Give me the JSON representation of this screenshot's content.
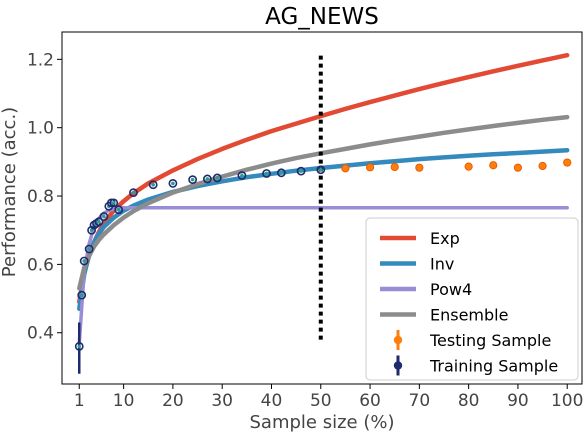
{
  "chart_data": {
    "type": "line",
    "title": "AG_NEWS",
    "xlabel": "Sample size (%)",
    "ylabel": "Performance (acc.)",
    "xlim": [
      -2.5,
      103
    ],
    "ylim": [
      0.25,
      1.28
    ],
    "xticks": [
      1,
      10,
      20,
      30,
      40,
      50,
      60,
      70,
      80,
      90,
      100
    ],
    "yticks": [
      0.4,
      0.6,
      0.8,
      1.0,
      1.2
    ],
    "ytick_labels": [
      "0.4",
      "0.6",
      "0.8",
      "1.0",
      "1.2"
    ],
    "grid": false,
    "legend_position": "lower-right",
    "vline": {
      "x": 50,
      "y_range": [
        0.38,
        1.22
      ],
      "style": "dotted"
    },
    "series": [
      {
        "name": "Exp",
        "kind": "curve",
        "color": "#e24a33",
        "x": [
          1,
          2,
          3,
          4,
          5,
          6,
          8,
          10,
          12,
          15,
          20,
          25,
          30,
          35,
          40,
          45,
          50,
          55,
          60,
          65,
          70,
          75,
          80,
          85,
          90,
          95,
          100
        ],
        "y": [
          0.49,
          0.575,
          0.625,
          0.665,
          0.695,
          0.72,
          0.758,
          0.785,
          0.808,
          0.837,
          0.875,
          0.908,
          0.938,
          0.965,
          0.99,
          1.012,
          1.034,
          1.055,
          1.075,
          1.094,
          1.113,
          1.131,
          1.148,
          1.165,
          1.181,
          1.197,
          1.212
        ]
      },
      {
        "name": "Inv",
        "kind": "curve",
        "color": "#348abd",
        "x": [
          1,
          2,
          3,
          4,
          5,
          6,
          8,
          10,
          12,
          15,
          20,
          25,
          30,
          35,
          40,
          45,
          50,
          55,
          60,
          65,
          70,
          75,
          80,
          85,
          90,
          95,
          100
        ],
        "y": [
          0.47,
          0.57,
          0.63,
          0.665,
          0.69,
          0.71,
          0.737,
          0.757,
          0.772,
          0.79,
          0.812,
          0.829,
          0.843,
          0.855,
          0.865,
          0.874,
          0.882,
          0.889,
          0.896,
          0.902,
          0.908,
          0.913,
          0.918,
          0.922,
          0.926,
          0.93,
          0.934
        ]
      },
      {
        "name": "Pow4",
        "kind": "curve",
        "color": "#988ed5",
        "x": [
          1,
          2,
          3,
          4,
          5,
          6,
          7,
          8,
          9,
          10,
          15,
          20,
          30,
          40,
          50,
          60,
          70,
          80,
          90,
          100
        ],
        "y": [
          0.37,
          0.58,
          0.66,
          0.71,
          0.735,
          0.75,
          0.758,
          0.762,
          0.765,
          0.766,
          0.766,
          0.766,
          0.766,
          0.766,
          0.766,
          0.766,
          0.766,
          0.766,
          0.766,
          0.766
        ]
      },
      {
        "name": "Ensemble",
        "kind": "curve",
        "color": "#8c8c8c",
        "x": [
          1,
          2,
          3,
          4,
          5,
          6,
          8,
          10,
          12,
          15,
          20,
          25,
          30,
          35,
          40,
          45,
          50,
          55,
          60,
          65,
          70,
          75,
          80,
          85,
          90,
          95,
          100
        ],
        "y": [
          0.53,
          0.59,
          0.625,
          0.652,
          0.672,
          0.688,
          0.715,
          0.737,
          0.756,
          0.779,
          0.81,
          0.835,
          0.857,
          0.877,
          0.895,
          0.911,
          0.925,
          0.938,
          0.951,
          0.963,
          0.974,
          0.985,
          0.995,
          1.005,
          1.014,
          1.023,
          1.031
        ]
      },
      {
        "name": "Testing Sample",
        "kind": "points",
        "color": "#ff7f0e",
        "x": [
          55,
          60,
          65,
          70,
          80,
          85,
          90,
          95,
          100
        ],
        "y": [
          0.881,
          0.884,
          0.885,
          0.883,
          0.886,
          0.89,
          0.883,
          0.888,
          0.898
        ]
      },
      {
        "name": "Training Sample",
        "kind": "points",
        "color": "#1f2a6e",
        "x": [
          1,
          1.5,
          2,
          3,
          3.5,
          4,
          4.5,
          5,
          6,
          7,
          7.5,
          8,
          9,
          12,
          16,
          20,
          24,
          27,
          29,
          34,
          39,
          42,
          46,
          50
        ],
        "y": [
          0.36,
          0.51,
          0.61,
          0.645,
          0.7,
          0.715,
          0.72,
          0.725,
          0.74,
          0.77,
          0.78,
          0.78,
          0.76,
          0.81,
          0.833,
          0.837,
          0.848,
          0.85,
          0.853,
          0.86,
          0.866,
          0.868,
          0.873,
          0.877
        ]
      }
    ],
    "error_bars": {
      "x": 1,
      "y_range": [
        0.28,
        0.43
      ],
      "color": "#1f2a6e"
    }
  }
}
